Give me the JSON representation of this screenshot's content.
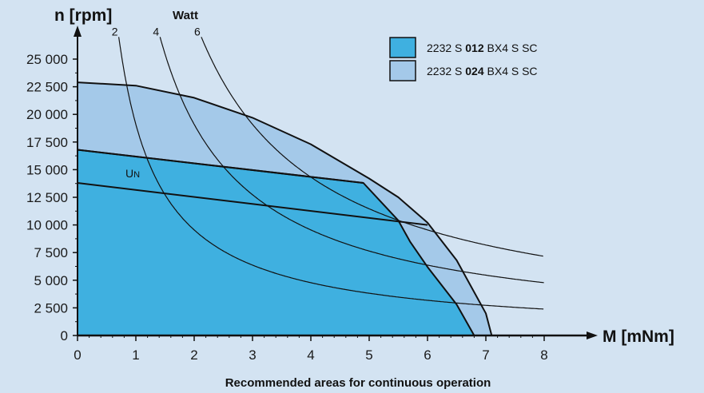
{
  "chart_data": {
    "type": "area",
    "caption": "Recommended areas for continuous operation",
    "y_axis": {
      "symbol": "n",
      "unit": "[rpm]",
      "ylim": [
        0,
        25000
      ],
      "ticks": [
        0,
        2500,
        5000,
        7500,
        10000,
        12500,
        15000,
        17500,
        20000,
        22500,
        25000
      ],
      "tick_labels": [
        "0",
        "2 500",
        "5 000",
        "7 500",
        "10 000",
        "12 500",
        "15 000",
        "17 500",
        "20 000",
        "22 500",
        "25 000"
      ]
    },
    "x_axis": {
      "symbol": "M",
      "unit": "[mNm]",
      "xlim": [
        0,
        8
      ],
      "ticks": [
        0,
        1,
        2,
        3,
        4,
        5,
        6,
        7,
        8
      ],
      "tick_labels": [
        "0",
        "1",
        "2",
        "3",
        "4",
        "5",
        "6",
        "7",
        "8"
      ]
    },
    "legend": {
      "position": "top-right",
      "entries": [
        {
          "prefix": "2232 S ",
          "bold": "012",
          "suffix": " BX4 S SC",
          "color": "#3fb0e0"
        },
        {
          "prefix": "2232 S ",
          "bold": "024",
          "suffix": " BX4 S SC",
          "color": "#a4c9e9"
        }
      ]
    },
    "series": [
      {
        "legend_index": 1,
        "color": "#a4c9e9",
        "points": [
          [
            0,
            22900
          ],
          [
            1,
            22600
          ],
          [
            2,
            21500
          ],
          [
            3,
            19700
          ],
          [
            4,
            17300
          ],
          [
            5,
            14200
          ],
          [
            5.5,
            12500
          ],
          [
            6,
            10200
          ],
          [
            6.5,
            6800
          ],
          [
            7,
            2000
          ],
          [
            7.1,
            0
          ]
        ]
      },
      {
        "legend_index": 0,
        "color": "#3fb0e0",
        "points": [
          [
            0,
            16800
          ],
          [
            4.9,
            13800
          ],
          [
            5.5,
            10400
          ],
          [
            5.7,
            8500
          ],
          [
            6,
            6200
          ],
          [
            6.5,
            2800
          ],
          [
            6.8,
            0
          ]
        ]
      }
    ],
    "rated_voltage_lines": [
      {
        "label": "U",
        "subscript": "N",
        "points": [
          [
            0,
            13800
          ],
          [
            6,
            10000
          ]
        ]
      },
      {
        "points": [
          [
            0,
            16800
          ],
          [
            4.9,
            13800
          ]
        ]
      }
    ],
    "power_curves": {
      "title": "Watt",
      "curves": [
        {
          "label": "2",
          "watts": 2
        },
        {
          "label": "4",
          "watts": 4
        },
        {
          "label": "6",
          "watts": 6
        }
      ]
    }
  }
}
